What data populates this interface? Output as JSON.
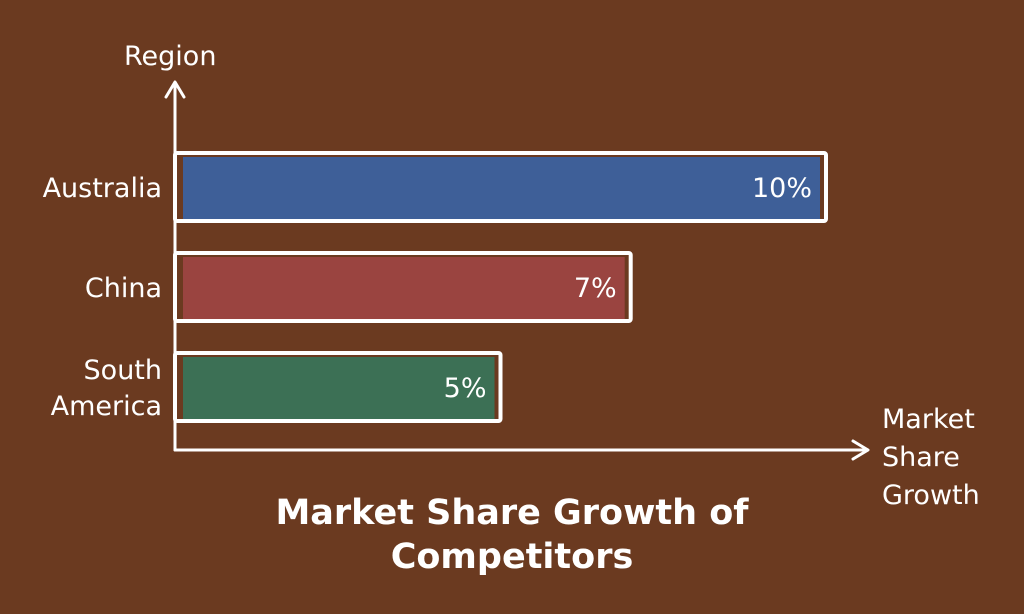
{
  "chart_data": {
    "type": "bar",
    "orientation": "horizontal",
    "categories": [
      "Australia",
      "China",
      "South America"
    ],
    "values": [
      10,
      7,
      5
    ],
    "value_labels": [
      "10%",
      "7%",
      "5%"
    ],
    "colors": [
      "#3e5f98",
      "#9a4440",
      "#3c7055"
    ],
    "xlabel": "Market Share Growth",
    "ylabel": "Region",
    "title": "Market Share Growth of Competitors",
    "xlim": [
      0,
      10
    ],
    "grid": false,
    "legend": "none"
  }
}
